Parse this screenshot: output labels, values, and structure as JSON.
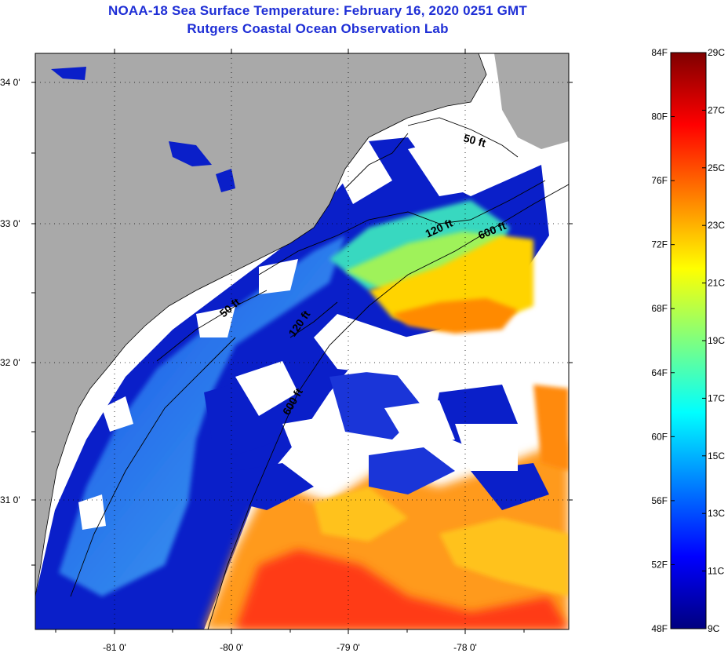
{
  "title": "NOAA-18 Sea Surface Temperature:  February 16, 2020 0251 GMT",
  "subtitle": "Rutgers Coastal Ocean Observation Lab",
  "map": {
    "lat_ticks": [
      "34 0'",
      "33 0'",
      "32 0'",
      "31 0'"
    ],
    "lon_ticks": [
      "-81 0'",
      "-80 0'",
      "-79 0'",
      "-78 0'"
    ],
    "contour_labels": [
      "50 ft",
      "120 ft",
      "600 ft",
      "50 ft",
      "120 ft",
      "600 ft"
    ],
    "colors": {
      "land": "#a9a9a9",
      "no_data": "#ffffff",
      "frame": "#000000"
    }
  },
  "colorbar": {
    "fahrenheit": [
      "84F",
      "80F",
      "76F",
      "72F",
      "68F",
      "64F",
      "60F",
      "56F",
      "52F",
      "48F"
    ],
    "celsius": [
      "29C",
      "27C",
      "25C",
      "23C",
      "21C",
      "19C",
      "17C",
      "15C",
      "13C",
      "11C",
      "9C"
    ],
    "stops": [
      "#00007f",
      "#0000ff",
      "#007fff",
      "#00ffff",
      "#7fff7f",
      "#ffff00",
      "#ff7f00",
      "#ff0000",
      "#7f0000"
    ]
  }
}
